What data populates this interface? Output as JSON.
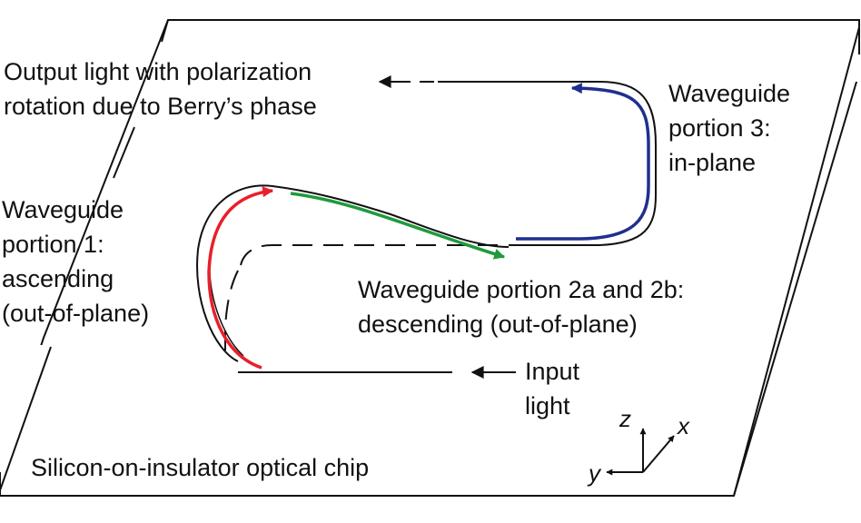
{
  "labels": {
    "output_line1": "Output light with polarization",
    "output_line2": "rotation due to Berry’s phase",
    "portion1_line1": "Waveguide",
    "portion1_line2": "portion 1:",
    "portion1_line3": "ascending",
    "portion1_line4": "(out-of-plane)",
    "portion3_line1": "Waveguide",
    "portion3_line2": "portion 3:",
    "portion3_line3": "in-plane",
    "portion2_line1": "Waveguide portion 2a and 2b:",
    "portion2_line2": "descending (out-of-plane)",
    "input_line1": "Input",
    "input_line2": "light",
    "chip": "Silicon-on-insulator optical chip",
    "axis_z": "z",
    "axis_x": "x",
    "axis_y": "y"
  },
  "colors": {
    "portion1": "#e8202a",
    "portion2": "#1f9a3c",
    "portion3": "#1f2f8f",
    "outline": "#111111"
  }
}
